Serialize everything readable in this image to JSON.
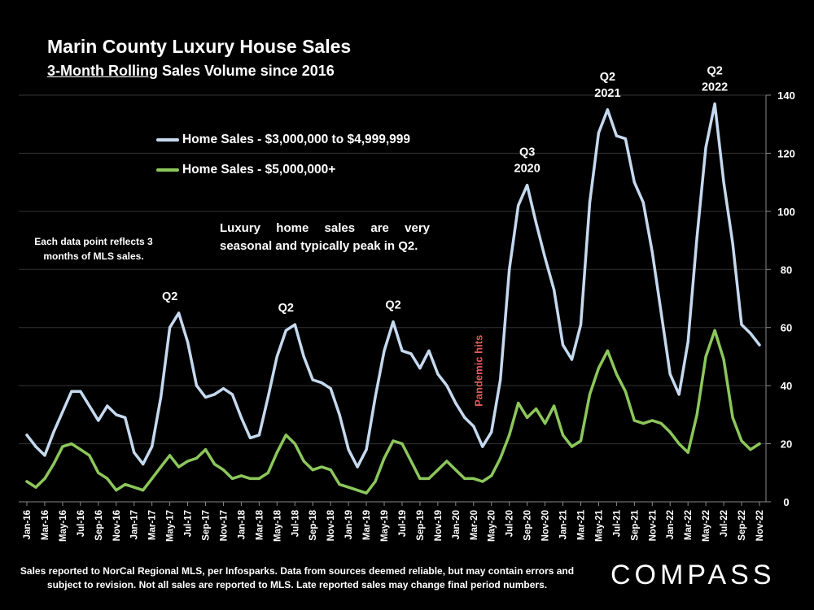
{
  "header": {
    "title": "Marin County Luxury House Sales",
    "subtitle_underlined": "3-Month Rolling",
    "subtitle_rest": " Sales Volume since 2016"
  },
  "notes": {
    "left": "Each data point reflects 3 months of MLS sales.",
    "main": "Luxury home sales are very seasonal and typically peak in Q2."
  },
  "footer": {
    "disclaimer": "Sales reported to NorCal Regional MLS, per Infosparks. Data from sources deemed reliable, but may contain errors and subject to revision. Not all sales are reported to MLS. Late reported sales may change final period numbers.",
    "logo": "COMPASS"
  },
  "colors": {
    "series1": "#c5d9ef",
    "series2": "#8cc75b",
    "pandemic": "#e05a5a",
    "grid": "#333333",
    "text": "#ffffff"
  },
  "chart_data": {
    "type": "line",
    "title": "Marin County Luxury House Sales",
    "subtitle": "3-Month Rolling Sales Volume since 2016",
    "xlabel": "",
    "ylabel": "",
    "ylim": [
      0,
      140
    ],
    "yticks": [
      0,
      20,
      40,
      60,
      80,
      100,
      120,
      140
    ],
    "y_axis_side": "right",
    "grid": "horizontal",
    "legend_position": "upper-left",
    "x": [
      "Jan-16",
      "Feb-16",
      "Mar-16",
      "Apr-16",
      "May-16",
      "Jun-16",
      "Jul-16",
      "Aug-16",
      "Sep-16",
      "Oct-16",
      "Nov-16",
      "Dec-16",
      "Jan-17",
      "Feb-17",
      "Mar-17",
      "Apr-17",
      "May-17",
      "Jun-17",
      "Jul-17",
      "Aug-17",
      "Sep-17",
      "Oct-17",
      "Nov-17",
      "Dec-17",
      "Jan-18",
      "Feb-18",
      "Mar-18",
      "Apr-18",
      "May-18",
      "Jun-18",
      "Jul-18",
      "Aug-18",
      "Sep-18",
      "Oct-18",
      "Nov-18",
      "Dec-18",
      "Jan-19",
      "Feb-19",
      "Mar-19",
      "Apr-19",
      "May-19",
      "Jun-19",
      "Jul-19",
      "Aug-19",
      "Sep-19",
      "Oct-19",
      "Nov-19",
      "Dec-19",
      "Jan-20",
      "Feb-20",
      "Mar-20",
      "Apr-20",
      "May-20",
      "Jun-20",
      "Jul-20",
      "Aug-20",
      "Sep-20",
      "Oct-20",
      "Nov-20",
      "Dec-20",
      "Jan-21",
      "Feb-21",
      "Mar-21",
      "Apr-21",
      "May-21",
      "Jun-21",
      "Jul-21",
      "Aug-21",
      "Sep-21",
      "Oct-21",
      "Nov-21",
      "Dec-21",
      "Jan-22",
      "Feb-22",
      "Mar-22",
      "Apr-22",
      "May-22",
      "Jun-22",
      "Jul-22",
      "Aug-22",
      "Sep-22",
      "Oct-22",
      "Nov-22"
    ],
    "xtick_labels": [
      "Jan-16",
      "Mar-16",
      "May-16",
      "Jul-16",
      "Sep-16",
      "Nov-16",
      "Jan-17",
      "Mar-17",
      "May-17",
      "Jul-17",
      "Sep-17",
      "Nov-17",
      "Jan-18",
      "Mar-18",
      "May-18",
      "Jul-18",
      "Sep-18",
      "Nov-18",
      "Jan-19",
      "Mar-19",
      "May-19",
      "Jul-19",
      "Sep-19",
      "Nov-19",
      "Jan-20",
      "Mar-20",
      "May-20",
      "Jul-20",
      "Sep-20",
      "Nov-20",
      "Jan-21",
      "Mar-21",
      "May-21",
      "Jul-21",
      "Sep-21",
      "Nov-21",
      "Jan-22",
      "Mar-22",
      "May-22",
      "Jul-22",
      "Sep-22",
      "Nov-22"
    ],
    "series": [
      {
        "name": "Home Sales - $3,000,000 to $4,999,999",
        "color": "#c5d9ef",
        "values": [
          23,
          19,
          16,
          24,
          31,
          38,
          38,
          33,
          28,
          33,
          30,
          29,
          17,
          13,
          19,
          36,
          60,
          65,
          55,
          40,
          36,
          37,
          39,
          37,
          29,
          22,
          23,
          36,
          50,
          59,
          61,
          50,
          42,
          41,
          39,
          30,
          18,
          12,
          18,
          36,
          52,
          62,
          52,
          51,
          46,
          52,
          44,
          40,
          34,
          29,
          26,
          19,
          24,
          42,
          80,
          102,
          109,
          96,
          84,
          73,
          54,
          49,
          61,
          103,
          127,
          135,
          126,
          125,
          110,
          103,
          86,
          65,
          44,
          37,
          55,
          91,
          122,
          137,
          110,
          89,
          61,
          58,
          54
        ]
      },
      {
        "name": "Home Sales - $5,000,000+",
        "color": "#8cc75b",
        "values": [
          7,
          5,
          8,
          13,
          19,
          20,
          18,
          16,
          10,
          8,
          4,
          6,
          5,
          4,
          8,
          12,
          16,
          12,
          14,
          15,
          18,
          13,
          11,
          8,
          9,
          8,
          8,
          10,
          17,
          23,
          20,
          14,
          11,
          12,
          11,
          6,
          5,
          4,
          3,
          7,
          15,
          21,
          20,
          14,
          8,
          8,
          11,
          14,
          11,
          8,
          8,
          7,
          9,
          15,
          23,
          34,
          29,
          32,
          27,
          33,
          23,
          19,
          21,
          37,
          46,
          52,
          44,
          38,
          28,
          27,
          28,
          27,
          24,
          20,
          17,
          30,
          50,
          59,
          49,
          29,
          21,
          18,
          20
        ]
      }
    ],
    "annotations": [
      {
        "text": "Q2",
        "x": "May-17",
        "y": 65
      },
      {
        "text": "Q2",
        "x": "Jun-18",
        "y": 61
      },
      {
        "text": "Q2",
        "x": "Jun-19",
        "y": 62
      },
      {
        "text": "Q3 2020",
        "x": "Sep-20",
        "y": 109
      },
      {
        "text": "Q2 2021",
        "x": "Jun-21",
        "y": 135
      },
      {
        "text": "Q2 2022",
        "x": "Jun-22",
        "y": 137
      },
      {
        "text": "Pandemic hits",
        "x": "Apr-20",
        "y": 30,
        "rotated": true
      }
    ]
  }
}
